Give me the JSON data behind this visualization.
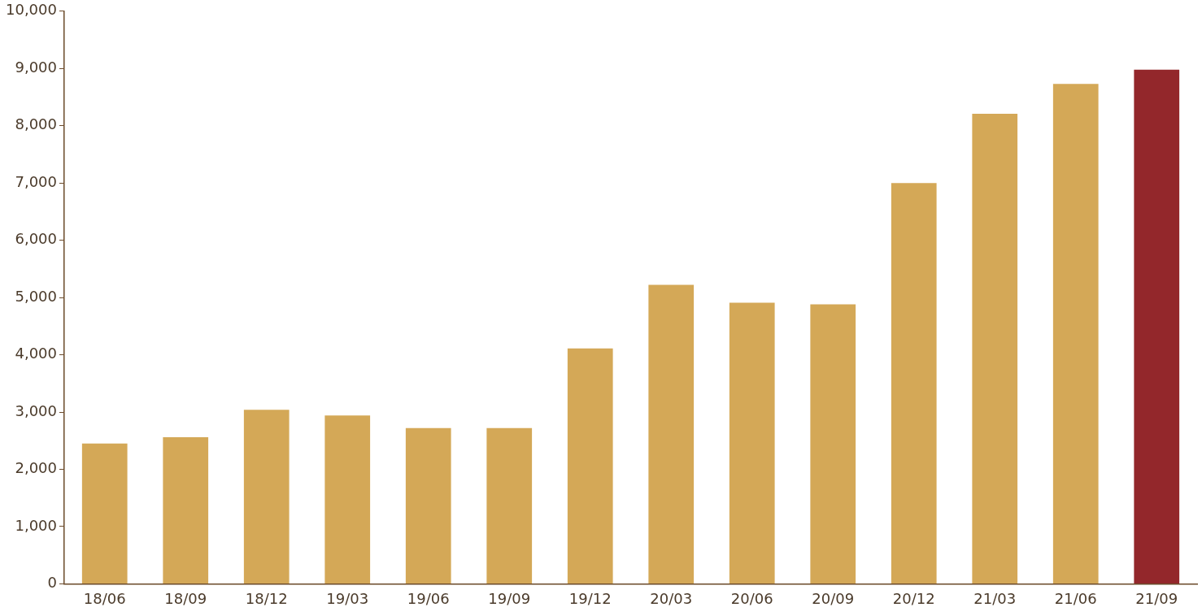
{
  "chart_data": {
    "type": "bar",
    "categories": [
      "18/06",
      "18/09",
      "18/12",
      "19/03",
      "19/06",
      "19/09",
      "19/12",
      "20/03",
      "20/06",
      "20/09",
      "20/12",
      "21/03",
      "21/06",
      "21/09"
    ],
    "values": [
      2450,
      2560,
      3040,
      2940,
      2720,
      2720,
      4110,
      5220,
      4910,
      4880,
      7000,
      8210,
      8730,
      8980
    ],
    "colors": [
      "#d4a857",
      "#d4a857",
      "#d4a857",
      "#d4a857",
      "#d4a857",
      "#d4a857",
      "#d4a857",
      "#d4a857",
      "#d4a857",
      "#d4a857",
      "#d4a857",
      "#d4a857",
      "#d4a857",
      "#93272b"
    ],
    "ylim": [
      0,
      10000
    ],
    "yticks": [
      0,
      {
        "value": 1000,
        "label": "1,000"
      },
      {
        "value": 2000,
        "label": "2,000"
      },
      {
        "value": 3000,
        "label": "3,000"
      },
      {
        "value": 4000,
        "label": "4,000"
      },
      {
        "value": 5000,
        "label": "5,000"
      },
      {
        "value": 6000,
        "label": "6,000"
      },
      {
        "value": 7000,
        "label": "7,000"
      },
      {
        "value": 8000,
        "label": "8,000"
      },
      {
        "value": 9000,
        "label": "9,000"
      },
      {
        "value": 10000,
        "label": "10,000"
      }
    ],
    "grid": false,
    "legend": false
  }
}
